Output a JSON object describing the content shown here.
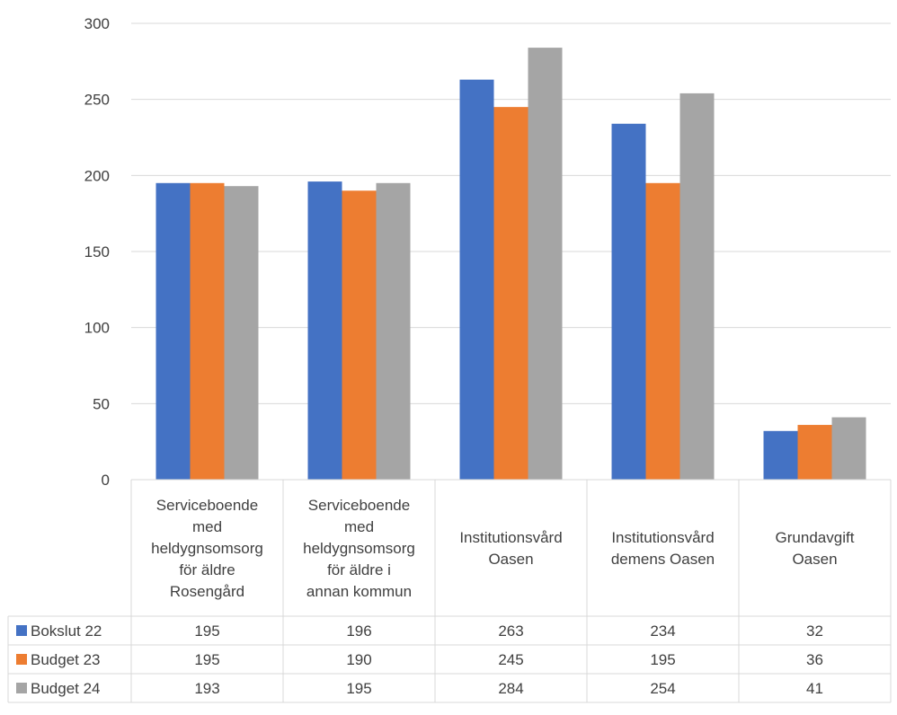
{
  "chart_data": {
    "type": "bar",
    "title": "",
    "xlabel": "",
    "ylabel": "",
    "ylim": [
      0,
      300
    ],
    "yticks": [
      0,
      50,
      100,
      150,
      200,
      250,
      300
    ],
    "grid": true,
    "legend": "data-table-left",
    "categories": [
      [
        "Serviceboende",
        "med",
        "heldygnsomsorg",
        "för äldre",
        "Rosengård"
      ],
      [
        "Serviceboende",
        "med",
        "heldygnsomsorg",
        "för äldre i",
        "annan kommun"
      ],
      [
        "Institutionsvård",
        "Oasen"
      ],
      [
        "Institutionsvård",
        "demens Oasen"
      ],
      [
        "Grundavgift",
        "Oasen"
      ]
    ],
    "series": [
      {
        "name": "Bokslut 22",
        "color": "#4472C4",
        "values": [
          195,
          196,
          263,
          234,
          32
        ]
      },
      {
        "name": "Budget 23",
        "color": "#ED7D31",
        "values": [
          195,
          190,
          245,
          195,
          36
        ]
      },
      {
        "name": "Budget 24",
        "color": "#A5A5A5",
        "values": [
          193,
          195,
          284,
          254,
          41
        ]
      }
    ]
  }
}
